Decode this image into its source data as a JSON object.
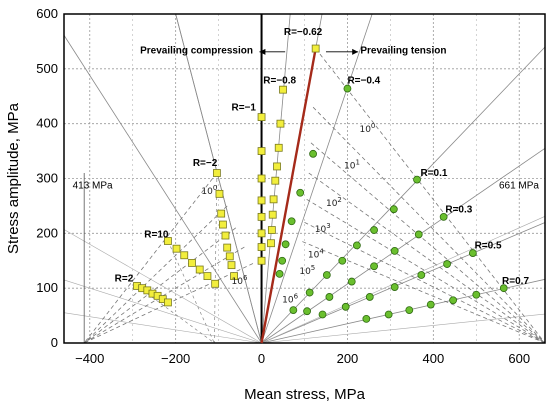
{
  "chart_data": {
    "type": "scatter",
    "title": "",
    "xlabel": "Mean stress, MPa",
    "ylabel": "Stress amplitude, MPa",
    "xlim": [
      -460,
      660
    ],
    "ylim": [
      0,
      600
    ],
    "xticks": [
      -400,
      -200,
      0,
      200,
      400,
      600
    ],
    "yticks": [
      0,
      100,
      200,
      300,
      400,
      500,
      600
    ],
    "grid": true,
    "region_labels": {
      "compression": "Prevailing compression",
      "tension": "Prevailing tension"
    },
    "reference_labels": [
      {
        "text": "413 MPa",
        "x": -413
      },
      {
        "text": "661 MPa",
        "x": 661
      }
    ],
    "ratio_lines": [
      {
        "label": "R=2",
        "slope": -3.0,
        "marker": "square",
        "points": [
          [
            -290,
            104
          ],
          [
            -278,
            100
          ],
          [
            -266,
            96
          ],
          [
            -254,
            90
          ],
          [
            -242,
            86
          ],
          [
            -230,
            80
          ],
          [
            -218,
            74
          ]
        ]
      },
      {
        "label": "R=10",
        "slope": -1.22,
        "marker": "square",
        "points": [
          [
            -218,
            186
          ],
          [
            -198,
            172
          ],
          [
            -180,
            160
          ],
          [
            -162,
            146
          ],
          [
            -144,
            134
          ],
          [
            -126,
            122
          ],
          [
            -108,
            108
          ]
        ]
      },
      {
        "label": "R=−2",
        "slope": -3.0,
        "marker": "square",
        "points": [
          [
            -104,
            310
          ],
          [
            -98,
            272
          ],
          [
            -94,
            236
          ],
          [
            -90,
            216
          ],
          [
            -84,
            196
          ],
          [
            -80,
            174
          ],
          [
            -74,
            158
          ],
          [
            -70,
            142
          ],
          [
            -64,
            122
          ]
        ]
      },
      {
        "label": "R=−1",
        "slope": null,
        "marker": "square",
        "points": [
          [
            0,
            412
          ],
          [
            0,
            350
          ],
          [
            0,
            300
          ],
          [
            0,
            260
          ],
          [
            0,
            230
          ],
          [
            0,
            200
          ],
          [
            0,
            175
          ],
          [
            0,
            150
          ]
        ]
      },
      {
        "label": "R=−0.8",
        "slope": 9.0,
        "marker": "square",
        "points": [
          [
            50,
            462
          ],
          [
            44,
            400
          ],
          [
            40,
            356
          ],
          [
            36,
            322
          ],
          [
            32,
            296
          ],
          [
            28,
            262
          ],
          [
            26,
            234
          ],
          [
            24,
            206
          ],
          [
            22,
            182
          ]
        ]
      },
      {
        "label": "R=−0.62",
        "slope": 4.26,
        "marker": "square",
        "points": [
          [
            126,
            537
          ]
        ]
      },
      {
        "label": "R=−0.4",
        "slope": 2.33,
        "marker": "circle",
        "points": [
          [
            200,
            464
          ],
          [
            120,
            345
          ],
          [
            90,
            274
          ],
          [
            70,
            222
          ],
          [
            56,
            180
          ],
          [
            48,
            150
          ],
          [
            42,
            126
          ]
        ]
      },
      {
        "label": "R=0.1",
        "slope": 0.818,
        "marker": "circle",
        "points": [
          [
            362,
            298
          ],
          [
            308,
            244
          ],
          [
            262,
            206
          ],
          [
            222,
            178
          ],
          [
            188,
            150
          ],
          [
            152,
            124
          ],
          [
            112,
            92
          ],
          [
            74,
            60
          ]
        ]
      },
      {
        "label": "R=0.3",
        "slope": 0.538,
        "marker": "circle",
        "points": [
          [
            424,
            230
          ],
          [
            366,
            198
          ],
          [
            310,
            168
          ],
          [
            262,
            140
          ],
          [
            210,
            112
          ],
          [
            158,
            84
          ],
          [
            106,
            58
          ]
        ]
      },
      {
        "label": "R=0.5",
        "slope": 0.333,
        "marker": "circle",
        "points": [
          [
            492,
            164
          ],
          [
            432,
            144
          ],
          [
            372,
            124
          ],
          [
            310,
            102
          ],
          [
            252,
            84
          ],
          [
            196,
            66
          ],
          [
            142,
            52
          ]
        ]
      },
      {
        "label": "R=0.7",
        "slope": 0.176,
        "marker": "circle",
        "points": [
          [
            564,
            100
          ],
          [
            500,
            88
          ],
          [
            446,
            78
          ],
          [
            394,
            70
          ],
          [
            344,
            60
          ],
          [
            296,
            52
          ],
          [
            244,
            44
          ]
        ]
      }
    ],
    "constant_life_lines": [
      {
        "label": "10^0",
        "base": "10",
        "exponent": "0"
      },
      {
        "label": "10^1",
        "base": "10",
        "exponent": "1"
      },
      {
        "label": "10^2",
        "base": "10",
        "exponent": "2"
      },
      {
        "label": "10^3",
        "base": "10",
        "exponent": "3"
      },
      {
        "label": "10^4",
        "base": "10",
        "exponent": "4"
      },
      {
        "label": "10^5",
        "base": "10",
        "exponent": "5"
      },
      {
        "label": "10^6",
        "base": "10",
        "exponent": "6"
      }
    ],
    "compression_life_labels": [
      {
        "label": "10^0",
        "base": "10",
        "exponent": "0"
      },
      {
        "label": "10^6",
        "base": "10",
        "exponent": "6"
      }
    ],
    "highlight_line": {
      "from": [
        0,
        0
      ],
      "to": [
        126,
        537
      ],
      "color": "#a52a1a"
    },
    "colors": {
      "square_marker": "#f2ee3c",
      "square_edge": "#7a7a1e",
      "circle_marker": "#6abf2e",
      "circle_edge": "#2f6a12",
      "highlight": "#a52a1a"
    }
  }
}
